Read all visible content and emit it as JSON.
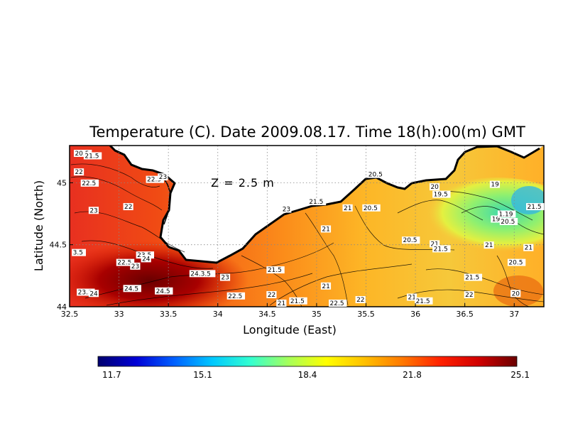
{
  "chart_data": {
    "type": "heatmap",
    "title": "Temperature (C). Date 2009.08.17. Time 18(h):00(m) GMT",
    "annotation": "Z = 2.5 m",
    "xlabel": "Longitude (East)",
    "ylabel": "Latitude (North)",
    "x_ticks": [
      "32.5",
      "33",
      "33.5",
      "34",
      "34.5",
      "35",
      "35.5",
      "36",
      "36.5",
      "37"
    ],
    "x_tick_values": [
      32.5,
      33,
      33.5,
      34,
      34.5,
      35,
      35.5,
      36,
      36.5,
      37
    ],
    "y_ticks": [
      "44",
      "44.5",
      "45"
    ],
    "y_tick_values": [
      44,
      44.5,
      45
    ],
    "xlim": [
      32.5,
      37.3
    ],
    "ylim": [
      44.0,
      45.3
    ],
    "grid": true,
    "colorbar": {
      "min": 11.7,
      "max": 25.1,
      "tick_labels": [
        "11.7",
        "15.1",
        "18.4",
        "21.8",
        "25.1"
      ],
      "colors": [
        "#00006e",
        "#0000d6",
        "#0060ff",
        "#00c8ff",
        "#33ffd0",
        "#a6ff5a",
        "#ffff00",
        "#ffc000",
        "#ff7800",
        "#ff2000",
        "#d00000",
        "#6a0000"
      ]
    },
    "contour_labels": [
      {
        "x": 32.55,
        "y": 45.22,
        "text": "20.5"
      },
      {
        "x": 32.65,
        "y": 45.2,
        "text": "21.5"
      },
      {
        "x": 32.55,
        "y": 45.07,
        "text": "22"
      },
      {
        "x": 32.62,
        "y": 44.98,
        "text": "22.5"
      },
      {
        "x": 33.28,
        "y": 45.01,
        "text": "22.5"
      },
      {
        "x": 33.4,
        "y": 45.03,
        "text": "23"
      },
      {
        "x": 32.7,
        "y": 44.76,
        "text": "23"
      },
      {
        "x": 33.05,
        "y": 44.79,
        "text": "22"
      },
      {
        "x": 32.53,
        "y": 44.42,
        "text": "3.5"
      },
      {
        "x": 32.98,
        "y": 44.34,
        "text": "22.5"
      },
      {
        "x": 33.18,
        "y": 44.4,
        "text": "23.5"
      },
      {
        "x": 33.23,
        "y": 44.37,
        "text": "24"
      },
      {
        "x": 33.12,
        "y": 44.31,
        "text": "23"
      },
      {
        "x": 33.72,
        "y": 44.25,
        "text": "24.3.5"
      },
      {
        "x": 34.03,
        "y": 44.22,
        "text": "23"
      },
      {
        "x": 32.58,
        "y": 44.1,
        "text": "23.5"
      },
      {
        "x": 32.7,
        "y": 44.09,
        "text": "24"
      },
      {
        "x": 33.05,
        "y": 44.13,
        "text": "24.5"
      },
      {
        "x": 33.37,
        "y": 44.11,
        "text": "24.5"
      },
      {
        "x": 34.1,
        "y": 44.07,
        "text": "22.5"
      },
      {
        "x": 34.5,
        "y": 44.08,
        "text": "22"
      },
      {
        "x": 34.5,
        "y": 44.28,
        "text": "21.5"
      },
      {
        "x": 34.65,
        "y": 44.77,
        "text": "23"
      },
      {
        "x": 34.92,
        "y": 44.83,
        "text": "21.5"
      },
      {
        "x": 35.05,
        "y": 44.61,
        "text": "21"
      },
      {
        "x": 35.27,
        "y": 44.78,
        "text": "21"
      },
      {
        "x": 35.47,
        "y": 44.78,
        "text": "20.5"
      },
      {
        "x": 34.73,
        "y": 44.03,
        "text": "21.5"
      },
      {
        "x": 34.6,
        "y": 44.0,
        "text": "21"
      },
      {
        "x": 35.05,
        "y": 44.15,
        "text": "21"
      },
      {
        "x": 35.13,
        "y": 44.0,
        "text": "22.5"
      },
      {
        "x": 35.4,
        "y": 44.04,
        "text": "22"
      },
      {
        "x": 35.52,
        "y": 45.05,
        "text": "20.5"
      },
      {
        "x": 35.87,
        "y": 44.52,
        "text": "20.5"
      },
      {
        "x": 36.15,
        "y": 44.49,
        "text": "21"
      },
      {
        "x": 36.18,
        "y": 44.45,
        "text": "21.5"
      },
      {
        "x": 36.5,
        "y": 44.22,
        "text": "21.5"
      },
      {
        "x": 36.5,
        "y": 44.08,
        "text": "22"
      },
      {
        "x": 35.92,
        "y": 44.06,
        "text": "21"
      },
      {
        "x": 36.0,
        "y": 44.03,
        "text": "21.5"
      },
      {
        "x": 36.15,
        "y": 44.95,
        "text": "20"
      },
      {
        "x": 36.18,
        "y": 44.89,
        "text": "19.5"
      },
      {
        "x": 36.76,
        "y": 44.97,
        "text": "19"
      },
      {
        "x": 36.77,
        "y": 44.69,
        "text": "19"
      },
      {
        "x": 36.86,
        "y": 44.67,
        "text": "20.5"
      },
      {
        "x": 36.84,
        "y": 44.73,
        "text": "1.19"
      },
      {
        "x": 36.7,
        "y": 44.48,
        "text": "21"
      },
      {
        "x": 36.94,
        "y": 44.34,
        "text": "20.5"
      },
      {
        "x": 37.1,
        "y": 44.46,
        "text": "21"
      },
      {
        "x": 37.22,
        "y": 44.79,
        "text": "21.5"
      },
      {
        "x": 36.97,
        "y": 44.09,
        "text": "20"
      }
    ]
  }
}
